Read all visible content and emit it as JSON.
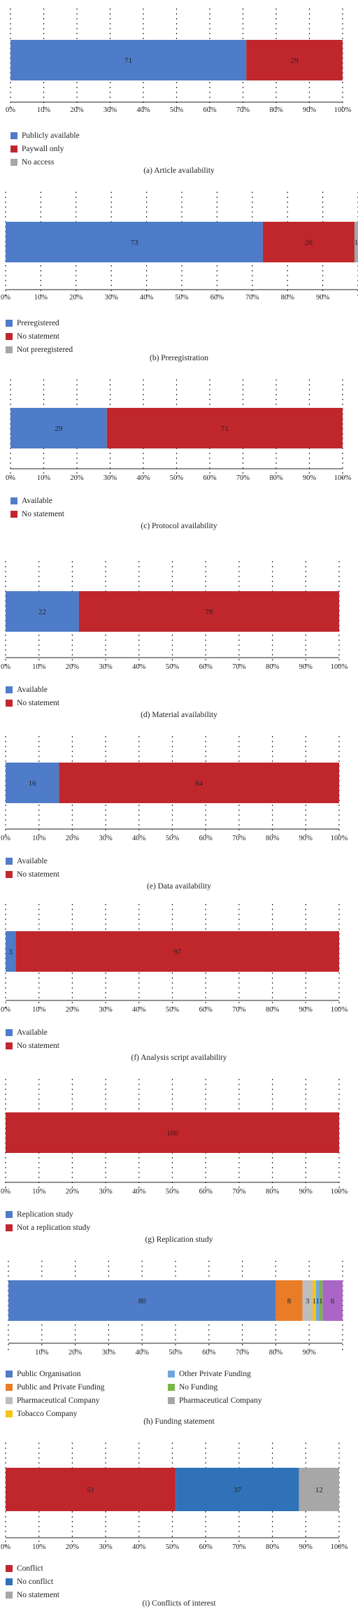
{
  "colors": {
    "blue": "#4f7cc8",
    "red": "#c0272d",
    "gray": "#a7a7a7",
    "orange": "#e97c26",
    "lightgray": "#bdbdbd",
    "yellow": "#f5c518",
    "lightblue": "#6fa8dc",
    "green": "#7ab648",
    "purple": "#a966c6",
    "midblue": "#2f72b8"
  },
  "chart_data": [
    {
      "type": "bar",
      "orientation": "horizontal-stacked",
      "caption": "(a) Article availability",
      "xlim": [
        0,
        100
      ],
      "ticks": [
        "0%",
        "10%",
        "20%",
        "30%",
        "40%",
        "50%",
        "60%",
        "70%",
        "80%",
        "90%",
        "100%"
      ],
      "series": [
        {
          "name": "Publicly available",
          "value": 71,
          "label": "71",
          "color": "#4f7cc8"
        },
        {
          "name": "Paywall only",
          "value": 29,
          "label": "29",
          "color": "#c0272d"
        },
        {
          "name": "No access",
          "value": 0,
          "label": "",
          "color": "#a7a7a7"
        }
      ]
    },
    {
      "type": "bar",
      "orientation": "horizontal-stacked",
      "caption": "(b) Preregistration",
      "xlim": [
        0,
        100
      ],
      "ticks": [
        "0%",
        "10%",
        "20%",
        "30%",
        "40%",
        "50%",
        "60%",
        "70%",
        "80%",
        "90%",
        ""
      ],
      "series": [
        {
          "name": "Preregistered",
          "value": 73,
          "label": "73",
          "color": "#4f7cc8"
        },
        {
          "name": "No statement",
          "value": 26,
          "label": "26",
          "color": "#c0272d"
        },
        {
          "name": "Not preregistered",
          "value": 1,
          "label": "1",
          "color": "#a7a7a7"
        }
      ]
    },
    {
      "type": "bar",
      "orientation": "horizontal-stacked",
      "caption": "(c) Protocol availability",
      "xlim": [
        0,
        100
      ],
      "ticks": [
        "0%",
        "10%",
        "20%",
        "30%",
        "40%",
        "50%",
        "60%",
        "70%",
        "80%",
        "90%",
        "100%"
      ],
      "series": [
        {
          "name": "Available",
          "value": 29,
          "label": "29",
          "color": "#4f7cc8"
        },
        {
          "name": "No statement",
          "value": 71,
          "label": "71",
          "color": "#c0272d"
        }
      ]
    },
    {
      "type": "bar",
      "orientation": "horizontal-stacked",
      "caption": "(d) Material availability",
      "xlim": [
        0,
        100
      ],
      "ticks": [
        "0%",
        "10%",
        "20%",
        "30%",
        "40%",
        "50%",
        "60%",
        "70%",
        "80%",
        "90%",
        "100%"
      ],
      "series": [
        {
          "name": "Available",
          "value": 22,
          "label": "22",
          "color": "#4f7cc8"
        },
        {
          "name": "No statement",
          "value": 78,
          "label": "78",
          "color": "#c0272d"
        }
      ]
    },
    {
      "type": "bar",
      "orientation": "horizontal-stacked",
      "caption": "(e) Data availability",
      "xlim": [
        0,
        100
      ],
      "ticks": [
        "0%",
        "10%",
        "20%",
        "30%",
        "40%",
        "50%",
        "60%",
        "70%",
        "80%",
        "90%",
        "100%"
      ],
      "series": [
        {
          "name": "Available",
          "value": 16,
          "label": "16",
          "color": "#4f7cc8"
        },
        {
          "name": "No statement",
          "value": 84,
          "label": "84",
          "color": "#c0272d"
        }
      ]
    },
    {
      "type": "bar",
      "orientation": "horizontal-stacked",
      "caption": "(f) Analysis script availability",
      "xlim": [
        0,
        100
      ],
      "ticks": [
        "0%",
        "10%",
        "20%",
        "30%",
        "40%",
        "50%",
        "60%",
        "70%",
        "80%",
        "90%",
        "100%"
      ],
      "series": [
        {
          "name": "Available",
          "value": 3,
          "label": "3",
          "color": "#4f7cc8"
        },
        {
          "name": "No statement",
          "value": 97,
          "label": "97",
          "color": "#c0272d"
        }
      ]
    },
    {
      "type": "bar",
      "orientation": "horizontal-stacked",
      "caption": "(g) Replication study",
      "xlim": [
        0,
        100
      ],
      "ticks": [
        "0%",
        "10%",
        "20%",
        "30%",
        "40%",
        "50%",
        "60%",
        "70%",
        "80%",
        "90%",
        "100%"
      ],
      "series": [
        {
          "name": "Replication study",
          "value": 0,
          "label": "",
          "color": "#4f7cc8"
        },
        {
          "name": "Not a replication study",
          "value": 100,
          "label": "100",
          "color": "#c0272d"
        }
      ]
    },
    {
      "type": "bar",
      "orientation": "horizontal-stacked",
      "caption": "(h) Funding statement",
      "xlim": [
        0,
        100
      ],
      "ticks": [
        "",
        "10%",
        "20%",
        "30%",
        "40%",
        "50%",
        "60%",
        "70%",
        "80%",
        "90%",
        ""
      ],
      "series": [
        {
          "name": "Public Organisation",
          "value": 80,
          "label": "80",
          "color": "#4f7cc8"
        },
        {
          "name": "Public and Private Funding",
          "value": 8,
          "label": "8",
          "color": "#e97c26"
        },
        {
          "name": "Pharmaceutical Company",
          "value": 3,
          "label": "3",
          "color": "#bdbdbd"
        },
        {
          "name": "Tobacco Company",
          "value": 1,
          "label": "1",
          "color": "#f5c518"
        },
        {
          "name": "Other Private Funding",
          "value": 1,
          "label": "1",
          "color": "#6fa8dc"
        },
        {
          "name": "No Funding",
          "value": 1,
          "label": "1",
          "color": "#7ab648"
        },
        {
          "name": "Pharmaceutical Company",
          "value": 0,
          "label": "",
          "color": "#a7a7a7"
        },
        {
          "name": "",
          "value": 6,
          "label": "6",
          "color": "#a966c6"
        }
      ]
    },
    {
      "type": "bar",
      "orientation": "horizontal-stacked",
      "caption": "(i) Conflicts of interest",
      "xlim": [
        0,
        100
      ],
      "ticks": [
        "0%",
        "10%",
        "20%",
        "30%",
        "40%",
        "50%",
        "60%",
        "70%",
        "80%",
        "90%",
        "100%"
      ],
      "series": [
        {
          "name": "Conflict",
          "value": 51,
          "label": "51",
          "color": "#c0272d"
        },
        {
          "name": "No conflict",
          "value": 37,
          "label": "37",
          "color": "#2f72b8"
        },
        {
          "name": "No statement",
          "value": 12,
          "label": "12",
          "color": "#a7a7a7"
        }
      ]
    }
  ]
}
